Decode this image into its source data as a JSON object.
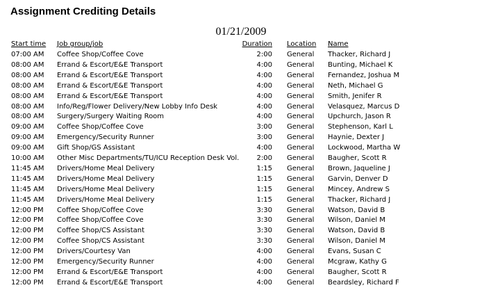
{
  "header": {
    "title": "Assignment Crediting Details",
    "date": "01/21/2009"
  },
  "table": {
    "columns": [
      "Start time",
      "Job group/job",
      "Duration",
      "Location",
      "Name"
    ],
    "rows": [
      [
        "07:00 AM",
        "Coffee Shop/Coffee Cove",
        "2:00",
        "General",
        "Thacker, Richard J"
      ],
      [
        "08:00 AM",
        "Errand & Escort/E&E Transport",
        "4:00",
        "General",
        "Bunting, Michael K"
      ],
      [
        "08:00 AM",
        "Errand & Escort/E&E Transport",
        "4:00",
        "General",
        "Fernandez, Joshua M"
      ],
      [
        "08:00 AM",
        "Errand & Escort/E&E Transport",
        "4:00",
        "General",
        "Neth, Michael G"
      ],
      [
        "08:00 AM",
        "Errand & Escort/E&E Transport",
        "4:00",
        "General",
        "Smith, Jenifer R"
      ],
      [
        "08:00 AM",
        "Info/Reg/Flower Delivery/New Lobby Info Desk",
        "4:00",
        "General",
        "Velasquez, Marcus D"
      ],
      [
        "08:00 AM",
        "Surgery/Surgery Waiting Room",
        "4:00",
        "General",
        "Upchurch, Jason R"
      ],
      [
        "09:00 AM",
        "Coffee Shop/Coffee Cove",
        "3:00",
        "General",
        "Stephenson, Karl L"
      ],
      [
        "09:00 AM",
        "Emergency/Security Runner",
        "3:00",
        "General",
        "Haynie, Dexter J"
      ],
      [
        "09:00 AM",
        "Gift Shop/GS Assistant",
        "4:00",
        "General",
        "Lockwood, Martha W"
      ],
      [
        "10:00 AM",
        "Other Misc Departments/TU/ICU Reception Desk Vol.",
        "2:00",
        "General",
        "Baugher, Scott R"
      ],
      [
        "11:45 AM",
        "Drivers/Home Meal Delivery",
        "1:15",
        "General",
        "Brown, Jaqueline J"
      ],
      [
        "11:45 AM",
        "Drivers/Home Meal Delivery",
        "1:15",
        "General",
        "Garvin, Denver D"
      ],
      [
        "11:45 AM",
        "Drivers/Home Meal Delivery",
        "1:15",
        "General",
        "Mincey, Andrew S"
      ],
      [
        "11:45 AM",
        "Drivers/Home Meal Delivery",
        "1:15",
        "General",
        "Thacker, Richard J"
      ],
      [
        "12:00 PM",
        "Coffee Shop/Coffee Cove",
        "3:30",
        "General",
        "Watson, David B"
      ],
      [
        "12:00 PM",
        "Coffee Shop/Coffee Cove",
        "3:30",
        "General",
        "Wilson, Daniel M"
      ],
      [
        "12:00 PM",
        "Coffee Shop/CS Assistant",
        "3:30",
        "General",
        "Watson, David B"
      ],
      [
        "12:00 PM",
        "Coffee Shop/CS Assistant",
        "3:30",
        "General",
        "Wilson, Daniel M"
      ],
      [
        "12:00 PM",
        "Drivers/Courtesy Van",
        "4:00",
        "General",
        "Evans, Susan C"
      ],
      [
        "12:00 PM",
        "Emergency/Security Runner",
        "4:00",
        "General",
        "Mcgraw, Kathy G"
      ],
      [
        "12:00 PM",
        "Errand & Escort/E&E Transport",
        "4:00",
        "General",
        "Baugher, Scott R"
      ],
      [
        "12:00 PM",
        "Errand & Escort/E&E Transport",
        "4:00",
        "General",
        "Beardsley, Richard F"
      ]
    ]
  }
}
